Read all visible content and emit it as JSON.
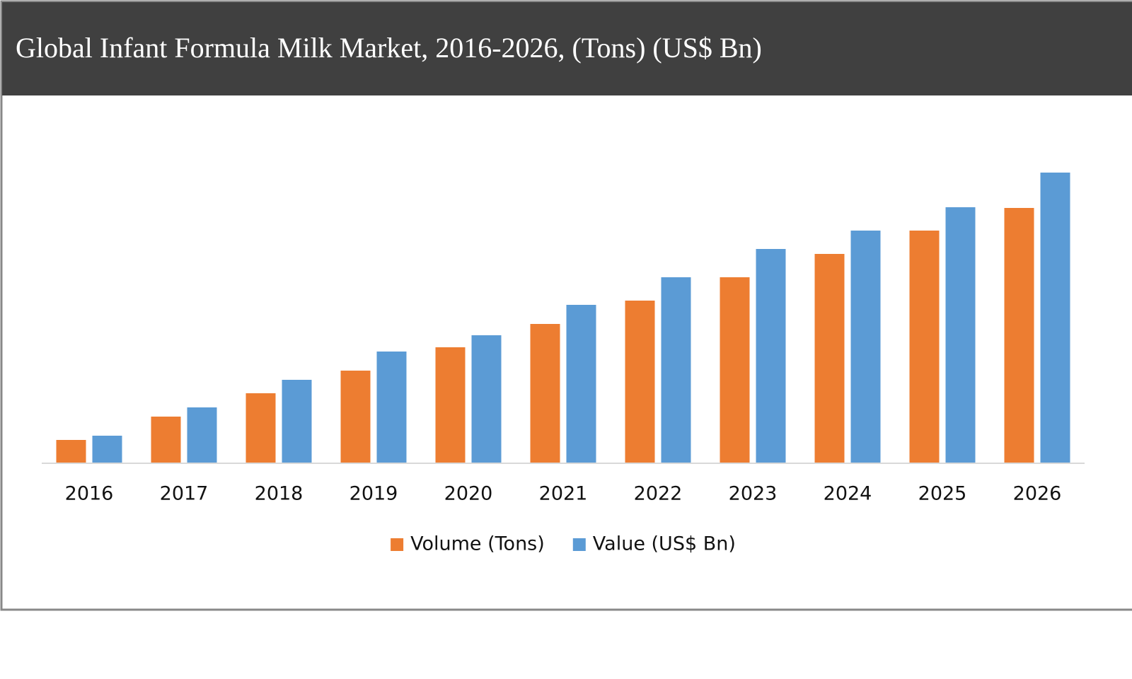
{
  "chart_data": {
    "type": "bar",
    "title": "Global Infant Formula Milk Market, 2016-2026, (Tons) (US$ Bn)",
    "categories": [
      "2016",
      "2017",
      "2018",
      "2019",
      "2020",
      "2021",
      "2022",
      "2023",
      "2024",
      "2025",
      "2026"
    ],
    "series": [
      {
        "name": "Volume (Tons)",
        "color": "#ed7d31",
        "values": [
          32,
          65,
          98,
          130,
          163,
          196,
          229,
          262,
          295,
          328,
          360
        ]
      },
      {
        "name": "Value (US$ Bn)",
        "color": "#5b9bd5",
        "values": [
          38,
          78,
          117,
          157,
          180,
          223,
          262,
          302,
          328,
          361,
          410
        ]
      }
    ],
    "legend": "bottom"
  }
}
